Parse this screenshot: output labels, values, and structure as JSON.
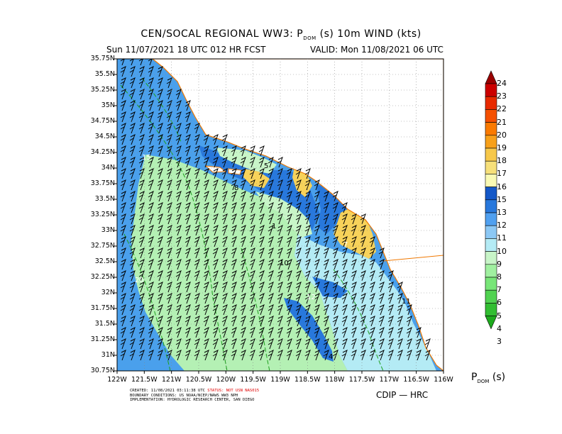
{
  "title_main": "CEN/SOCAL REGIONAL WW3: P",
  "title_sub": "DOM",
  "title_rest": " (s) 10m WIND (kts)",
  "subtitle_left": "Sun 11/07/2021 18 UTC 012 HR FCST",
  "subtitle_right": "VALID: Mon 11/08/2021 06 UTC",
  "lat_ticks": [
    "35.75N",
    "35.5N",
    "35.25N",
    "35N",
    "34.75N",
    "34.5N",
    "34.25N",
    "34N",
    "33.75N",
    "33.5N",
    "33.25N",
    "33N",
    "32.75N",
    "32.5N",
    "32.25N",
    "32N",
    "31.75N",
    "31.5N",
    "31.25N",
    "31N",
    "30.75N"
  ],
  "lon_ticks": [
    "122W",
    "121.5W",
    "121W",
    "120.5W",
    "120W",
    "119.5W",
    "119W",
    "118.5W",
    "118W",
    "117.5W",
    "117W",
    "116.5W",
    "116W"
  ],
  "footer": {
    "line1_a": "CREATED: 11/08/2021 03:11:38 UTC ",
    "line1_status": "STATUS: NOT USN NAS015",
    "line2": "BOUNDARY CONDITIONS: US NOAA/NCEP/NAWS WW3 NPH",
    "line3": "IMPLEMENTATION: HYDROLOGIC RESEARCH CENTER, SAN DIEGO",
    "line4": ""
  },
  "credit": "CDIP — HRC",
  "legend_title_main": "P",
  "legend_title_sub": "DOM",
  "legend_title_rest": " (s)",
  "colorbar": {
    "labels": [
      "24",
      "23",
      "22",
      "21",
      "20",
      "19",
      "18",
      "17",
      "16",
      "15",
      "13",
      "12",
      "11",
      "10",
      "9",
      "8",
      "7",
      "6",
      "5",
      "4",
      "3"
    ],
    "colors": [
      "#9a0000",
      "#cc0000",
      "#e82a00",
      "#f55000",
      "#fa7a00",
      "#f7a01a",
      "#f7c84a",
      "#f7e07a",
      "#fafab4",
      "#1458c8",
      "#2878dc",
      "#50a0f0",
      "#8cc8f5",
      "#b4ebf5",
      "#c8f5c8",
      "#a0f0a0",
      "#78e678",
      "#50d250",
      "#32be32",
      "#1eaa1e"
    ]
  },
  "map_labels": [
    "5",
    "15",
    "8",
    "1",
    "7",
    "10",
    "12",
    "4",
    "20",
    "11"
  ],
  "map": {
    "lat_range": [
      30.75,
      35.75
    ],
    "lon_range": [
      -122,
      -116
    ],
    "colors": {
      "land": "#ffffff",
      "period_20": "#4aa0ec",
      "period_15_16": "#2878dc",
      "period_8": "#b4f0b4",
      "period_7": "#c8f5c8",
      "period_10": "#b4ebf5",
      "period_17_18": "#f7d25a",
      "coast": "#f07800",
      "contour": "#1ea01e",
      "barb": "#000000"
    }
  }
}
